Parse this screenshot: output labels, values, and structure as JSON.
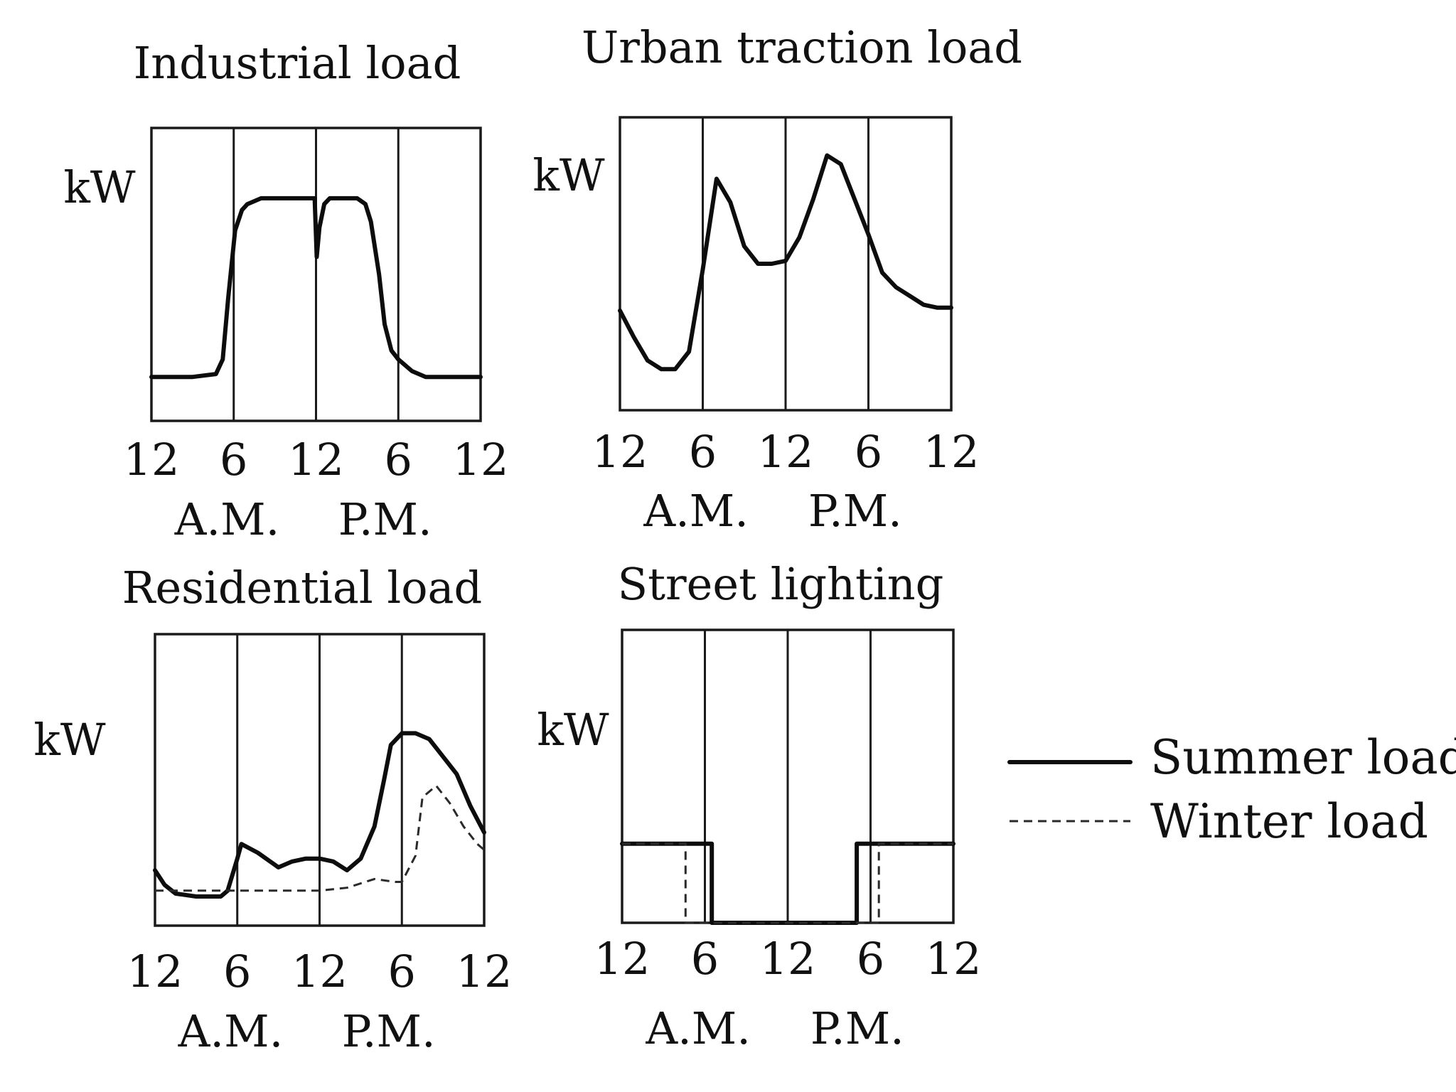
{
  "chart_data": [
    {
      "type": "line",
      "title": "Industrial load",
      "ylabel": "kW",
      "x_ticks": [
        "12",
        "6",
        "12",
        "6",
        "12"
      ],
      "x_periods": [
        "A.M.",
        "P.M."
      ],
      "xlim": [
        0,
        24
      ],
      "ylim": [
        0,
        1
      ],
      "grid": true,
      "series": [
        {
          "x": [
            0,
            3,
            4.7,
            5.2,
            5.6,
            6.1,
            6.6,
            7,
            8,
            9,
            10,
            11,
            11.9,
            12.05,
            12.25,
            12.6,
            13,
            14,
            15,
            15.6,
            16,
            16.6,
            17,
            17.5,
            18,
            19,
            20,
            22,
            24
          ],
          "y": [
            0.15,
            0.15,
            0.16,
            0.21,
            0.42,
            0.65,
            0.72,
            0.74,
            0.76,
            0.76,
            0.76,
            0.76,
            0.76,
            0.56,
            0.66,
            0.74,
            0.76,
            0.76,
            0.76,
            0.74,
            0.68,
            0.5,
            0.33,
            0.24,
            0.21,
            0.17,
            0.15,
            0.15,
            0.15
          ]
        }
      ]
    },
    {
      "type": "line",
      "title": "Urban traction load",
      "ylabel": "kW",
      "x_ticks": [
        "12",
        "6",
        "12",
        "6",
        "12"
      ],
      "x_periods": [
        "A.M.",
        "P.M."
      ],
      "xlim": [
        0,
        24
      ],
      "ylim": [
        0,
        1
      ],
      "grid": true,
      "series": [
        {
          "x": [
            0,
            1,
            2,
            3,
            4,
            5,
            6,
            7,
            8,
            9,
            10,
            11,
            12,
            13,
            14,
            15,
            16,
            17,
            18,
            19,
            20,
            21,
            22,
            23,
            24
          ],
          "y": [
            0.34,
            0.25,
            0.17,
            0.14,
            0.14,
            0.2,
            0.48,
            0.79,
            0.71,
            0.56,
            0.5,
            0.5,
            0.51,
            0.59,
            0.72,
            0.87,
            0.84,
            0.72,
            0.6,
            0.47,
            0.42,
            0.39,
            0.36,
            0.35,
            0.35
          ]
        }
      ]
    },
    {
      "type": "line",
      "title": "Residential load",
      "ylabel": "kW",
      "x_ticks": [
        "12",
        "6",
        "12",
        "6",
        "12"
      ],
      "x_periods": [
        "A.M.",
        "P.M."
      ],
      "xlim": [
        0,
        24
      ],
      "ylim": [
        0,
        1
      ],
      "grid": true,
      "series": [
        {
          "x": [
            0,
            0.7,
            1.5,
            3,
            4.8,
            5.3,
            6,
            6.3,
            7.5,
            9,
            10,
            11,
            12,
            13,
            14,
            15,
            16,
            16.7,
            17.2,
            18,
            19,
            20,
            21,
            22,
            23,
            24
          ],
          "y": [
            0.19,
            0.14,
            0.11,
            0.1,
            0.1,
            0.12,
            0.23,
            0.28,
            0.25,
            0.2,
            0.22,
            0.23,
            0.23,
            0.22,
            0.19,
            0.23,
            0.34,
            0.5,
            0.62,
            0.66,
            0.66,
            0.64,
            0.58,
            0.52,
            0.41,
            0.32
          ]
        },
        {
          "x": [
            0,
            6,
            12,
            14,
            16,
            17.5,
            18,
            19,
            19.5,
            20.5,
            21.5,
            22.5,
            23.5,
            24
          ],
          "y": [
            0.12,
            0.12,
            0.12,
            0.13,
            0.16,
            0.15,
            0.15,
            0.24,
            0.44,
            0.48,
            0.42,
            0.34,
            0.28,
            0.26
          ]
        }
      ]
    },
    {
      "type": "line",
      "title": "Street lighting",
      "ylabel": "kW",
      "x_ticks": [
        "12",
        "6",
        "12",
        "6",
        "12"
      ],
      "x_periods": [
        "A.M.",
        "P.M."
      ],
      "xlim": [
        0,
        24
      ],
      "ylim": [
        0,
        1
      ],
      "grid": true,
      "series": [
        {
          "x": [
            0,
            6.5,
            6.5,
            17,
            17,
            24
          ],
          "y": [
            0.27,
            0.27,
            0,
            0,
            0.27,
            0.27
          ]
        },
        {
          "x": [
            0,
            4.6,
            4.6,
            18.6,
            18.6,
            24
          ],
          "y": [
            0.27,
            0.27,
            0,
            0,
            0.27,
            0.27
          ]
        }
      ]
    }
  ],
  "legend": {
    "summer_label": "Summer load",
    "winter_label": "Winter load"
  }
}
